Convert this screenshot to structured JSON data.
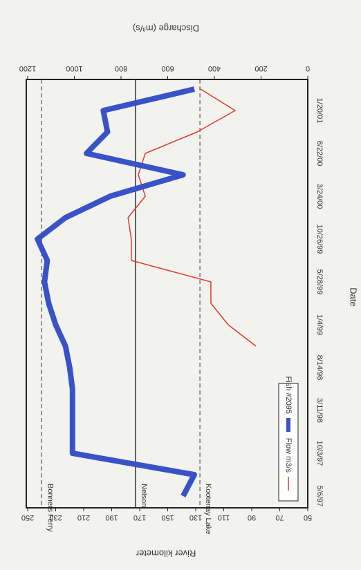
{
  "chart_data": {
    "type": "line",
    "y_label": "River kilometer",
    "y2_label": "Discharge (m³/s)",
    "x_label": "Date",
    "categories": [
      "5/6/97",
      null,
      "10/3/97",
      null,
      "3/11/98",
      null,
      "8/14/98",
      null,
      "1/4/99",
      null,
      "5/28/99",
      null,
      "10/26/99",
      null,
      "3/24/00",
      null,
      "8/22/00",
      null,
      "1/20/01",
      null
    ],
    "series": [
      {
        "name": "Flow m3/s",
        "color": "#e03a2a",
        "axis": "y2",
        "values": [
          null,
          null,
          null,
          null,
          null,
          null,
          null,
          222,
          341,
          415,
          415,
          756,
          756,
          770,
          696,
          726,
          696,
          474,
          311,
          459
        ]
      },
      {
        "name": "Fish #2095",
        "color": "#3a52c8",
        "values": [
          139,
          131,
          218,
          218,
          218,
          218,
          220,
          223,
          230,
          235,
          238,
          236,
          243,
          223,
          191,
          139,
          208,
          193,
          196,
          131
        ]
      }
    ],
    "ylim": [
      50,
      250
    ],
    "yticks": [
      50,
      70,
      90,
      110,
      130,
      150,
      170,
      190,
      210,
      230,
      250
    ],
    "y2lim": [
      0,
      1200
    ],
    "y2ticks": [
      0,
      200,
      400,
      600,
      800,
      1000,
      1200
    ],
    "reference_lines": [
      {
        "value": 240,
        "label": "Bonners Ferry",
        "style": "dashed"
      },
      {
        "value": 173,
        "label": "Nelson",
        "style": "solid"
      },
      {
        "value": 127,
        "label": "Kootenay Lake",
        "style": "dashed"
      }
    ]
  }
}
